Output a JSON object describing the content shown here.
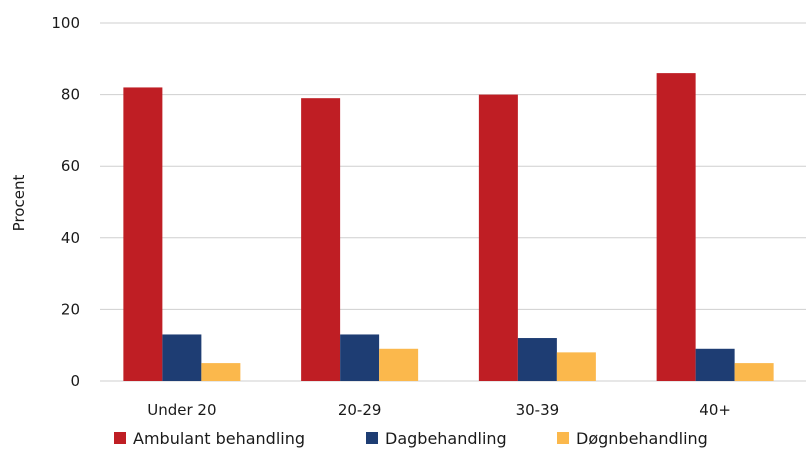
{
  "chart_data": {
    "type": "bar",
    "title": "",
    "xlabel": "",
    "ylabel": "Procent",
    "ylim": [
      0,
      100
    ],
    "yticks": [
      0,
      20,
      40,
      60,
      80,
      100
    ],
    "grid": true,
    "legend_position": "bottom",
    "categories": [
      "Under 20",
      "20-29",
      "30-39",
      "40+"
    ],
    "series": [
      {
        "name": "Ambulant behandling",
        "color": "#bf1e24",
        "values": [
          82,
          79,
          80,
          86
        ]
      },
      {
        "name": "Dagbehandling",
        "color": "#1e3d73",
        "values": [
          13,
          13,
          12,
          9
        ]
      },
      {
        "name": "Døgnbehandling",
        "color": "#fbb84c",
        "values": [
          5,
          9,
          8,
          5
        ]
      }
    ]
  }
}
